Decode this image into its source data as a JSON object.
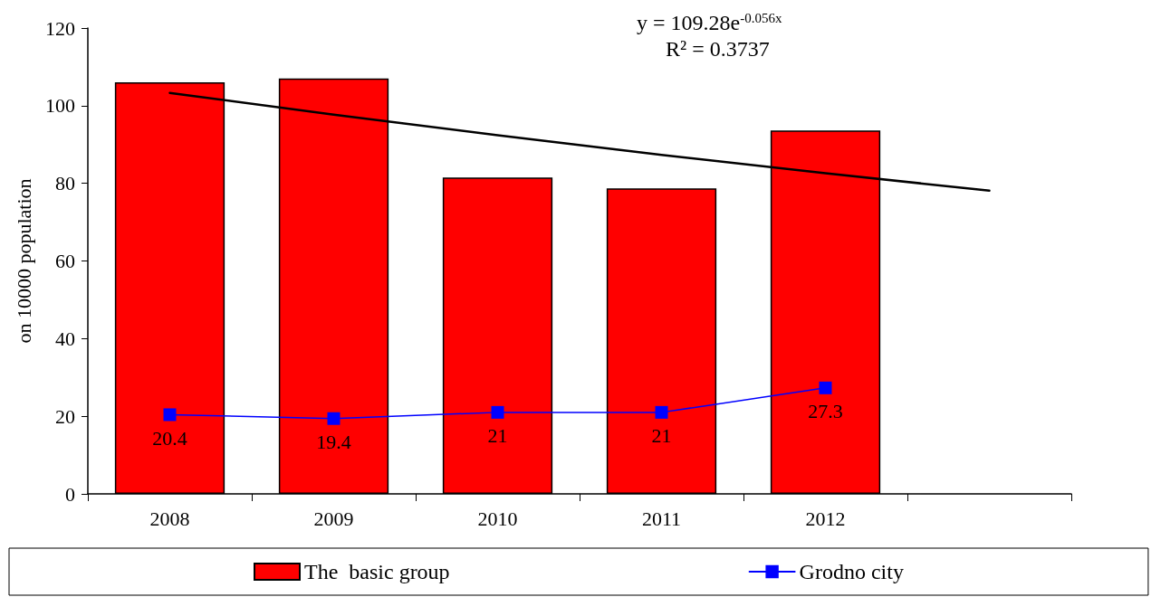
{
  "chart_data": {
    "type": "bar",
    "ylabel": "on 10000 population",
    "categories": [
      "2008",
      "2009",
      "2010",
      "2011",
      "2012",
      null
    ],
    "ylim": [
      0,
      120
    ],
    "yticks": [
      0,
      20,
      40,
      60,
      80,
      100,
      120
    ],
    "grid": false,
    "legend": "bottom",
    "annotations": [
      "y = 109.28e$^{-0.056x}$",
      "R² = 0.3737"
    ],
    "series": [
      {
        "name": "The  basic group",
        "color": "#ff0000",
        "values": [
          106,
          107,
          81.5,
          78.7,
          93.6,
          null
        ]
      },
      {
        "name": "Grodno city",
        "type": "line",
        "color": "#0000ff",
        "marker": "square",
        "values": [
          20.4,
          19.4,
          21,
          21,
          27.3,
          null
        ],
        "value_labels": [
          "20.4",
          "19.4",
          "21",
          "21",
          "27.3",
          null
        ]
      },
      {
        "type": "line",
        "color": "#000000",
        "marker": "none",
        "values": [
          103.3,
          97.7,
          92.4,
          87.3,
          82.6,
          78.1
        ]
      }
    ]
  }
}
